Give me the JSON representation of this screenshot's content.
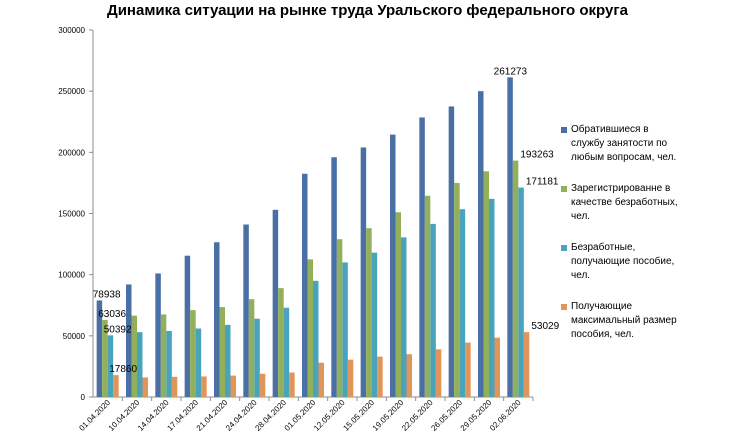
{
  "chart_data": {
    "type": "bar",
    "title": "Динамика ситуации  на рынке труда Уральского федерального округа",
    "xlabel": "",
    "ylabel": "",
    "ylim": [
      0,
      300000
    ],
    "yticks": [
      0,
      50000,
      100000,
      150000,
      200000,
      250000,
      300000
    ],
    "grid": false,
    "legend_position": "right",
    "categories": [
      "01.04.2020",
      "10.04.2020",
      "14.04.2020",
      "17.04.2020",
      "21.04.2020",
      "24.04.2020",
      "28.04.2020",
      "01.05.2020",
      "12.05.2020",
      "15.05.2020",
      "19.05.2020",
      "22.05.2020",
      "26.05.2020",
      "29.05.2020",
      "02.06.2020"
    ],
    "series": [
      {
        "name": "Обратившиеся в службу занятости по любым вопросам, чел.",
        "color": "#4a6fa5",
        "values": [
          78938,
          92000,
          101000,
          115500,
          126500,
          141000,
          153000,
          182500,
          196000,
          204000,
          214500,
          228500,
          237500,
          250000,
          261273
        ]
      },
      {
        "name": "Зарегистрированне в качестве безработных, чел.",
        "color": "#92b05a",
        "values": [
          63036,
          66500,
          67500,
          71000,
          73500,
          80000,
          89000,
          112500,
          129000,
          138000,
          151000,
          164500,
          175000,
          184500,
          193263
        ]
      },
      {
        "name": "Безработные, получающие пособие, чел.",
        "color": "#4aa3bd",
        "values": [
          50392,
          53000,
          54000,
          56000,
          59000,
          64000,
          73000,
          95000,
          110000,
          118000,
          130500,
          141500,
          153500,
          162000,
          171181
        ]
      },
      {
        "name": "Получающие максимальный размер пособия, чел.",
        "color": "#e0955a",
        "values": [
          17860,
          16000,
          16500,
          16800,
          17500,
          19000,
          20000,
          28000,
          30500,
          33000,
          35000,
          39000,
          44500,
          48500,
          53029
        ]
      }
    ],
    "data_labels": [
      {
        "series": 0,
        "index": 0,
        "text": "78938"
      },
      {
        "series": 1,
        "index": 0,
        "text": "63036"
      },
      {
        "series": 2,
        "index": 0,
        "text": "50392"
      },
      {
        "series": 3,
        "index": 0,
        "text": "17860"
      },
      {
        "series": 0,
        "index": 14,
        "text": "261273"
      },
      {
        "series": 1,
        "index": 14,
        "text": "193263"
      },
      {
        "series": 2,
        "index": 14,
        "text": "171181"
      },
      {
        "series": 3,
        "index": 14,
        "text": "53029"
      }
    ],
    "legend_lines": [
      [
        "Обратившиеся в",
        "службу занятости по",
        "любым вопросам, чел."
      ],
      [
        "Зарегистрированне в",
        "качестве безработных,",
        "чел."
      ],
      [
        "Безработные,",
        "получающие пособие,",
        "чел."
      ],
      [
        "Получающие",
        "максимальный размер",
        "пособия, чел."
      ]
    ]
  }
}
